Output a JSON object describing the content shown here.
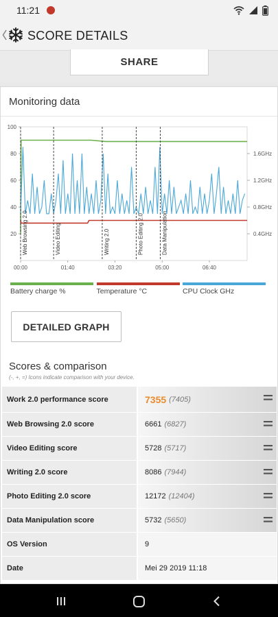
{
  "status_bar": {
    "time": "11:21"
  },
  "app_bar": {
    "title": "SCORE DETAILS"
  },
  "share": {
    "label": "SHARE"
  },
  "monitoring": {
    "title": "Monitoring data",
    "detailed_button": "DETAILED GRAPH"
  },
  "chart_data": {
    "type": "line",
    "x_unit": "mm:ss",
    "x_ticks": [
      "00:00",
      "01:40",
      "03:20",
      "05:00",
      "06:40"
    ],
    "xlim": [
      0,
      480
    ],
    "y_left_ticks": [
      "100",
      "80",
      "60",
      "40",
      "20"
    ],
    "ylim_left": [
      0,
      100
    ],
    "y_right_ticks": [
      "1.6GHz",
      "1.2GHz",
      "0.8GHz",
      "0.4GHz"
    ],
    "ylim_right": [
      0,
      2.0
    ],
    "sections": [
      {
        "name": "Web Browsing 2.0",
        "start": 0
      },
      {
        "name": "Video Editing",
        "start": 70
      },
      {
        "name": "Writing 2.0",
        "start": 173
      },
      {
        "name": "Photo Editing 2.0",
        "start": 245
      },
      {
        "name": "Data Manipulation",
        "start": 296
      }
    ],
    "series": [
      {
        "name": "Battery charge %",
        "color": "#6ab04c",
        "axis": "left",
        "x": [
          0,
          1,
          150,
          180,
          480
        ],
        "values": [
          20,
          90,
          90,
          89,
          89
        ]
      },
      {
        "name": "Temperature °C",
        "color": "#c0392b",
        "axis": "left",
        "x": [
          0,
          1,
          142,
          145,
          480
        ],
        "values": [
          30,
          28,
          28,
          30,
          30
        ]
      },
      {
        "name": "CPU Clock GHz",
        "color": "#4aa8d8",
        "axis": "right",
        "x": [
          0,
          5,
          10,
          15,
          20,
          25,
          30,
          35,
          40,
          45,
          50,
          55,
          60,
          65,
          70,
          75,
          80,
          85,
          90,
          95,
          100,
          105,
          110,
          115,
          120,
          125,
          130,
          135,
          140,
          145,
          150,
          155,
          160,
          165,
          170,
          175,
          180,
          185,
          190,
          195,
          200,
          205,
          210,
          215,
          220,
          225,
          230,
          235,
          240,
          245,
          250,
          255,
          260,
          265,
          270,
          275,
          280,
          285,
          290,
          295,
          300,
          305,
          310,
          315,
          320,
          325,
          330,
          335,
          340,
          345,
          350,
          355,
          360,
          365,
          370,
          375,
          380,
          385,
          390,
          395,
          400,
          405,
          410,
          415,
          420,
          425,
          430,
          435,
          440,
          445,
          450,
          455,
          460,
          465,
          470,
          475
        ],
        "values": [
          0.7,
          1.7,
          0.7,
          0.9,
          0.7,
          1.3,
          0.7,
          1.1,
          0.7,
          0.8,
          1.2,
          0.7,
          0.7,
          1.0,
          0.7,
          0.9,
          1.3,
          0.7,
          1.5,
          0.7,
          1.0,
          0.7,
          1.6,
          0.7,
          1.2,
          0.7,
          1.6,
          0.7,
          1.1,
          0.7,
          1.0,
          0.7,
          1.2,
          0.7,
          0.9,
          1.6,
          0.7,
          1.3,
          0.7,
          0.8,
          0.7,
          1.2,
          0.7,
          1.0,
          0.7,
          0.9,
          0.7,
          1.4,
          0.7,
          0.8,
          0.7,
          1.0,
          0.7,
          1.1,
          0.7,
          0.9,
          0.7,
          1.4,
          0.7,
          1.7,
          0.7,
          1.0,
          0.7,
          1.2,
          0.7,
          1.1,
          0.7,
          0.8,
          0.9,
          0.7,
          1.0,
          0.7,
          1.2,
          0.7,
          0.8,
          0.7,
          1.1,
          0.7,
          1.0,
          0.7,
          0.9,
          1.3,
          0.7,
          1.0,
          1.4,
          0.7,
          1.1,
          0.7,
          0.9,
          0.7,
          1.0,
          0.7,
          1.2,
          0.7,
          0.9,
          1.0
        ]
      }
    ]
  },
  "scores": {
    "title": "Scores & comparison",
    "subtitle": "(-, +, =) Icons indicate comparison with your device.",
    "rows": [
      {
        "label": "Work 2.0 performance score",
        "value": "7355",
        "ref": "(7405)"
      },
      {
        "label": "Web Browsing 2.0 score",
        "value": "6661",
        "ref": "(6827)"
      },
      {
        "label": "Video Editing score",
        "value": "5728",
        "ref": "(5717)"
      },
      {
        "label": "Writing 2.0 score",
        "value": "8086",
        "ref": "(7944)"
      },
      {
        "label": "Photo Editing 2.0 score",
        "value": "12172",
        "ref": "(12404)"
      },
      {
        "label": "Data Manipulation score",
        "value": "5732",
        "ref": "(5650)"
      },
      {
        "label": "OS Version",
        "value": "9"
      },
      {
        "label": "Date",
        "value": "Mei 29 2019 11:18"
      }
    ]
  }
}
